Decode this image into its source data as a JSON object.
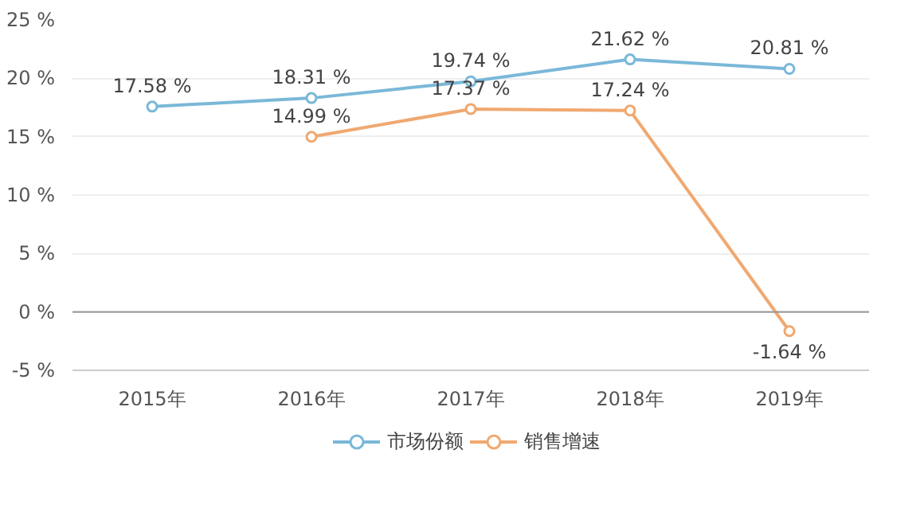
{
  "chart_data": {
    "type": "line",
    "categories": [
      "2015年",
      "2016年",
      "2017年",
      "2018年",
      "2019年"
    ],
    "series": [
      {
        "name": "市场份额",
        "color": "#7ab8d8",
        "values": [
          17.58,
          18.31,
          19.74,
          21.62,
          20.81
        ],
        "value_labels": [
          "17.58 %",
          "18.31 %",
          "19.74 %",
          "21.62 %",
          "20.81 %"
        ]
      },
      {
        "name": "销售增速",
        "color": "#f0a870",
        "values": [
          null,
          14.99,
          17.37,
          17.24,
          -1.64
        ],
        "value_labels": [
          null,
          "14.99 %",
          "17.37 %",
          "17.24 %",
          "-1.64 %"
        ]
      }
    ],
    "ylim": [
      -5,
      25
    ],
    "yticks": [
      {
        "value": -5,
        "label": "-5 %"
      },
      {
        "value": 0,
        "label": "0 %"
      },
      {
        "value": 5,
        "label": "5 %"
      },
      {
        "value": 10,
        "label": "10 %"
      },
      {
        "value": 15,
        "label": "15 %"
      },
      {
        "value": 20,
        "label": "20 %"
      },
      {
        "value": 25,
        "label": "25 %"
      }
    ],
    "grid": "y",
    "legend": "bottom",
    "marker": "circle",
    "line_style": "solid"
  }
}
